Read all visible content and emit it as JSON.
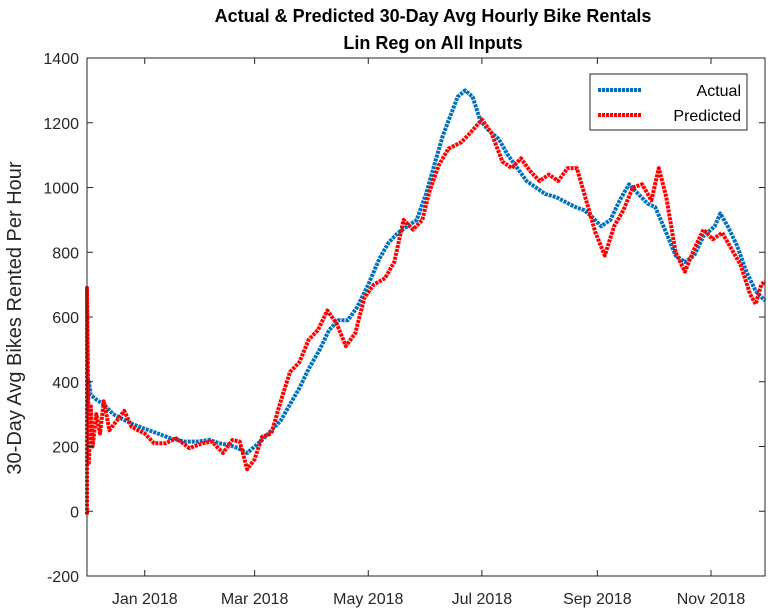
{
  "chart_data": {
    "type": "line",
    "title": [
      "Actual & Predicted 30-Day Avg Hourly Bike Rentals",
      "Lin Reg on All Inputs"
    ],
    "xlabel": "",
    "ylabel": "30-Day Avg Bikes Rented Per Hour",
    "ylim": [
      -200,
      1400
    ],
    "yticks": [
      -200,
      0,
      200,
      400,
      600,
      800,
      1000,
      1200,
      1400
    ],
    "xlim": [
      "2017-12-01",
      "2018-11-30"
    ],
    "xticks": [
      {
        "label": "Jan 2018",
        "date": "2018-01-01"
      },
      {
        "label": "Mar 2018",
        "date": "2018-03-01"
      },
      {
        "label": "May 2018",
        "date": "2018-05-01"
      },
      {
        "label": "Jul 2018",
        "date": "2018-07-01"
      },
      {
        "label": "Sep 2018",
        "date": "2018-09-01"
      },
      {
        "label": "Nov 2018",
        "date": "2018-11-01"
      }
    ],
    "legend": {
      "position": "top-right",
      "entries": [
        "Actual",
        "Predicted"
      ]
    },
    "grid": false,
    "series": [
      {
        "name": "Actual",
        "color": "#0072BD",
        "points": [
          [
            "2017-12-01",
            310
          ],
          [
            "2017-12-02",
            400
          ],
          [
            "2017-12-03",
            360
          ],
          [
            "2017-12-06",
            345
          ],
          [
            "2017-12-10",
            330
          ],
          [
            "2017-12-15",
            300
          ],
          [
            "2017-12-20",
            285
          ],
          [
            "2017-12-25",
            270
          ],
          [
            "2018-01-01",
            255
          ],
          [
            "2018-01-08",
            240
          ],
          [
            "2018-01-15",
            225
          ],
          [
            "2018-01-22",
            215
          ],
          [
            "2018-01-29",
            215
          ],
          [
            "2018-02-05",
            220
          ],
          [
            "2018-02-10",
            210
          ],
          [
            "2018-02-15",
            205
          ],
          [
            "2018-02-20",
            195
          ],
          [
            "2018-02-25",
            180
          ],
          [
            "2018-03-01",
            200
          ],
          [
            "2018-03-05",
            220
          ],
          [
            "2018-03-10",
            250
          ],
          [
            "2018-03-15",
            280
          ],
          [
            "2018-03-20",
            330
          ],
          [
            "2018-03-25",
            380
          ],
          [
            "2018-03-30",
            440
          ],
          [
            "2018-04-05",
            500
          ],
          [
            "2018-04-10",
            560
          ],
          [
            "2018-04-15",
            590
          ],
          [
            "2018-04-20",
            590
          ],
          [
            "2018-04-25",
            630
          ],
          [
            "2018-05-01",
            700
          ],
          [
            "2018-05-07",
            780
          ],
          [
            "2018-05-12",
            830
          ],
          [
            "2018-05-17",
            860
          ],
          [
            "2018-05-22",
            880
          ],
          [
            "2018-05-27",
            900
          ],
          [
            "2018-06-01",
            980
          ],
          [
            "2018-06-06",
            1080
          ],
          [
            "2018-06-10",
            1160
          ],
          [
            "2018-06-14",
            1220
          ],
          [
            "2018-06-18",
            1280
          ],
          [
            "2018-06-22",
            1300
          ],
          [
            "2018-06-26",
            1280
          ],
          [
            "2018-06-30",
            1210
          ],
          [
            "2018-07-04",
            1180
          ],
          [
            "2018-07-10",
            1150
          ],
          [
            "2018-07-15",
            1100
          ],
          [
            "2018-07-20",
            1060
          ],
          [
            "2018-07-25",
            1020
          ],
          [
            "2018-07-30",
            1000
          ],
          [
            "2018-08-04",
            980
          ],
          [
            "2018-08-10",
            970
          ],
          [
            "2018-08-15",
            955
          ],
          [
            "2018-08-20",
            940
          ],
          [
            "2018-08-25",
            930
          ],
          [
            "2018-08-30",
            905
          ],
          [
            "2018-09-03",
            880
          ],
          [
            "2018-09-08",
            900
          ],
          [
            "2018-09-13",
            960
          ],
          [
            "2018-09-18",
            1010
          ],
          [
            "2018-09-23",
            980
          ],
          [
            "2018-09-28",
            950
          ],
          [
            "2018-10-02",
            940
          ],
          [
            "2018-10-08",
            860
          ],
          [
            "2018-10-13",
            790
          ],
          [
            "2018-10-18",
            770
          ],
          [
            "2018-10-23",
            790
          ],
          [
            "2018-10-28",
            850
          ],
          [
            "2018-11-03",
            880
          ],
          [
            "2018-11-06",
            920
          ],
          [
            "2018-11-10",
            880
          ],
          [
            "2018-11-15",
            820
          ],
          [
            "2018-11-20",
            740
          ],
          [
            "2018-11-25",
            680
          ],
          [
            "2018-11-30",
            650
          ]
        ]
      },
      {
        "name": "Predicted",
        "color": "#FF0000",
        "points": [
          [
            "2017-12-01",
            -10
          ],
          [
            "2017-12-01",
            690
          ],
          [
            "2017-12-02",
            150
          ],
          [
            "2017-12-03",
            330
          ],
          [
            "2017-12-04",
            200
          ],
          [
            "2017-12-06",
            300
          ],
          [
            "2017-12-08",
            240
          ],
          [
            "2017-12-10",
            340
          ],
          [
            "2017-12-13",
            250
          ],
          [
            "2017-12-17",
            280
          ],
          [
            "2017-12-21",
            310
          ],
          [
            "2017-12-25",
            260
          ],
          [
            "2018-01-01",
            240
          ],
          [
            "2018-01-06",
            210
          ],
          [
            "2018-01-12",
            210
          ],
          [
            "2018-01-18",
            225
          ],
          [
            "2018-01-25",
            195
          ],
          [
            "2018-02-01",
            210
          ],
          [
            "2018-02-06",
            215
          ],
          [
            "2018-02-12",
            180
          ],
          [
            "2018-02-17",
            220
          ],
          [
            "2018-02-21",
            215
          ],
          [
            "2018-02-25",
            130
          ],
          [
            "2018-03-01",
            160
          ],
          [
            "2018-03-05",
            230
          ],
          [
            "2018-03-10",
            240
          ],
          [
            "2018-03-15",
            340
          ],
          [
            "2018-03-20",
            430
          ],
          [
            "2018-03-25",
            460
          ],
          [
            "2018-03-30",
            530
          ],
          [
            "2018-04-04",
            560
          ],
          [
            "2018-04-09",
            620
          ],
          [
            "2018-04-14",
            580
          ],
          [
            "2018-04-19",
            510
          ],
          [
            "2018-04-24",
            550
          ],
          [
            "2018-04-29",
            660
          ],
          [
            "2018-05-04",
            700
          ],
          [
            "2018-05-10",
            720
          ],
          [
            "2018-05-15",
            770
          ],
          [
            "2018-05-20",
            900
          ],
          [
            "2018-05-25",
            870
          ],
          [
            "2018-05-30",
            900
          ],
          [
            "2018-06-03",
            990
          ],
          [
            "2018-06-08",
            1070
          ],
          [
            "2018-06-13",
            1120
          ],
          [
            "2018-06-20",
            1140
          ],
          [
            "2018-06-25",
            1170
          ],
          [
            "2018-07-01",
            1210
          ],
          [
            "2018-07-06",
            1170
          ],
          [
            "2018-07-12",
            1080
          ],
          [
            "2018-07-17",
            1060
          ],
          [
            "2018-07-22",
            1090
          ],
          [
            "2018-07-27",
            1050
          ],
          [
            "2018-08-01",
            1020
          ],
          [
            "2018-08-06",
            1040
          ],
          [
            "2018-08-11",
            1020
          ],
          [
            "2018-08-16",
            1060
          ],
          [
            "2018-08-21",
            1060
          ],
          [
            "2018-08-26",
            960
          ],
          [
            "2018-08-31",
            860
          ],
          [
            "2018-09-05",
            790
          ],
          [
            "2018-09-10",
            880
          ],
          [
            "2018-09-15",
            930
          ],
          [
            "2018-09-20",
            1000
          ],
          [
            "2018-09-25",
            1010
          ],
          [
            "2018-09-30",
            960
          ],
          [
            "2018-10-04",
            1060
          ],
          [
            "2018-10-08",
            970
          ],
          [
            "2018-10-13",
            800
          ],
          [
            "2018-10-18",
            740
          ],
          [
            "2018-10-23",
            810
          ],
          [
            "2018-10-28",
            870
          ],
          [
            "2018-11-02",
            840
          ],
          [
            "2018-11-07",
            860
          ],
          [
            "2018-11-12",
            810
          ],
          [
            "2018-11-17",
            760
          ],
          [
            "2018-11-22",
            670
          ],
          [
            "2018-11-25",
            640
          ],
          [
            "2018-11-28",
            700
          ],
          [
            "2018-11-30",
            710
          ]
        ]
      }
    ]
  }
}
